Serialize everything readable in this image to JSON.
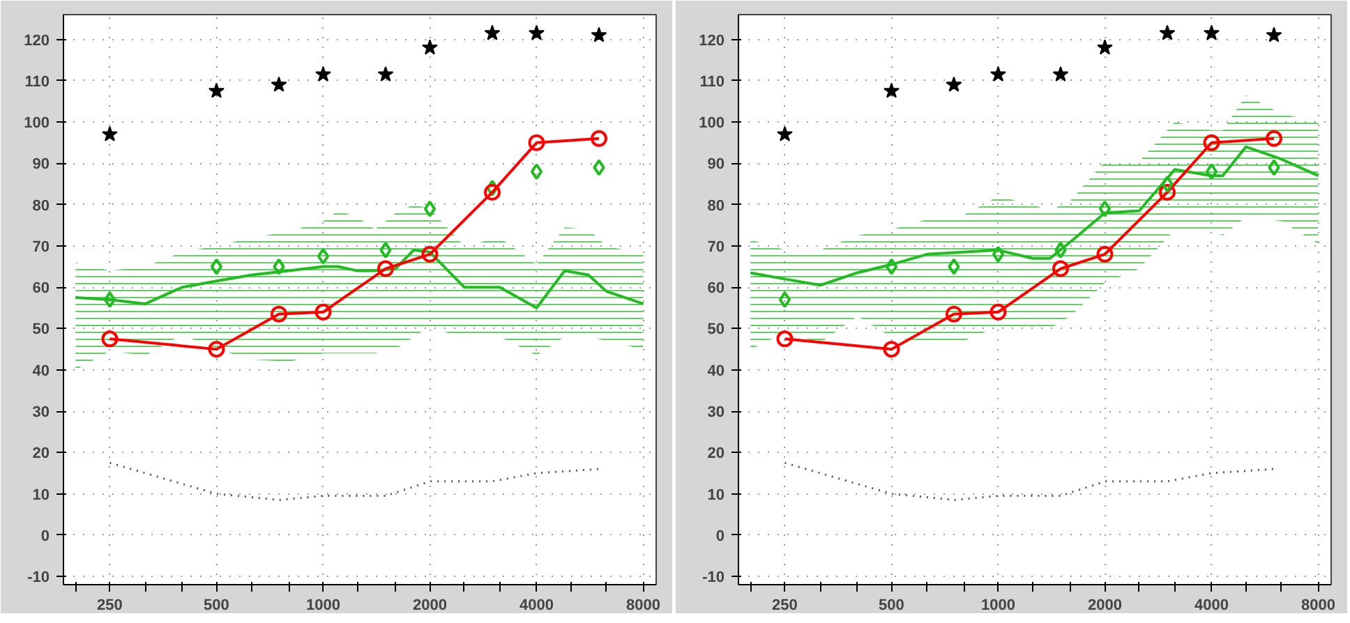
{
  "chart_data": [
    {
      "type": "line",
      "log": "x",
      "grid": true,
      "xlim": [
        185,
        8700
      ],
      "ylim": [
        -12,
        126
      ],
      "xticks": [
        {
          "value": 200,
          "label": null
        },
        250,
        {
          "value": 315,
          "label": null
        },
        {
          "value": 400,
          "label": null
        },
        500,
        {
          "value": 630,
          "label": null
        },
        {
          "value": 800,
          "label": null
        },
        1000,
        {
          "value": 1250,
          "label": null
        },
        {
          "value": 1600,
          "label": null
        },
        2000,
        {
          "value": 2500,
          "label": null
        },
        {
          "value": 3150,
          "label": null
        },
        4000,
        {
          "value": 5000,
          "label": null
        },
        {
          "value": 6300,
          "label": null
        },
        8000
      ],
      "yticks": [
        -10,
        0,
        10,
        20,
        30,
        40,
        50,
        60,
        70,
        80,
        90,
        100,
        110,
        120
      ],
      "series": [
        {
          "color": "#22bb22",
          "marker": "none",
          "x": [
            200,
            250,
            315,
            400,
            500,
            630,
            800,
            1000,
            1100,
            1250,
            1400,
            1600,
            1800,
            2000,
            2500,
            3150,
            4000,
            4800,
            5600,
            6300,
            8000
          ],
          "values": [
            57.5,
            57,
            56,
            60,
            61.5,
            63,
            64,
            65,
            65,
            64,
            64,
            64.5,
            69,
            68.5,
            60,
            60,
            55,
            64,
            63,
            59,
            56
          ],
          "lower": [
            40,
            44.5,
            43.5,
            48.5,
            45,
            42.5,
            42,
            44,
            44,
            44,
            44,
            45,
            48,
            50.5,
            47.5,
            48,
            43.5,
            48,
            48,
            47,
            45
          ],
          "upper": [
            66,
            64,
            65,
            68.5,
            70,
            72,
            73.5,
            76,
            78.5,
            77,
            74,
            78,
            80,
            79,
            70,
            72,
            65.5,
            74.5,
            74,
            70,
            68
          ]
        },
        {
          "type": "line",
          "color": "#555555",
          "marker": "none",
          "line_style": "dotted",
          "x": [
            250,
            500,
            750,
            1000,
            1500,
            2000,
            3000,
            4000,
            6000
          ],
          "values": [
            17.5,
            10,
            8.5,
            9.5,
            9.5,
            13,
            13,
            15,
            16
          ]
        },
        {
          "type": "scatter",
          "color": "#000000",
          "marker": "star",
          "x": [
            250,
            500,
            750,
            1000,
            1500,
            2000,
            3000,
            4000,
            6000
          ],
          "values": [
            97,
            107.5,
            109,
            111.5,
            111.5,
            118,
            121.5,
            121.5,
            121
          ]
        },
        {
          "type": "scatter",
          "color": "#22bb22",
          "marker": "diamond",
          "x": [
            250,
            500,
            750,
            1000,
            1500,
            2000,
            3000,
            4000,
            6000
          ],
          "values": [
            57,
            65,
            65,
            67.5,
            69,
            79,
            84,
            88,
            89
          ]
        },
        {
          "type": "line",
          "color": "#ff0000",
          "marker": "circle",
          "x": [
            250,
            500,
            750,
            1000,
            1500,
            2000,
            3000,
            4000,
            6000
          ],
          "values": [
            47.5,
            45,
            53.5,
            54,
            64.5,
            68,
            83,
            95,
            96
          ]
        }
      ]
    },
    {
      "type": "line",
      "log": "x",
      "grid": true,
      "xlim": [
        185,
        8700
      ],
      "ylim": [
        -12,
        126
      ],
      "xticks": [
        {
          "value": 200,
          "label": null
        },
        250,
        {
          "value": 315,
          "label": null
        },
        {
          "value": 400,
          "label": null
        },
        500,
        {
          "value": 630,
          "label": null
        },
        {
          "value": 800,
          "label": null
        },
        1000,
        {
          "value": 1250,
          "label": null
        },
        {
          "value": 1600,
          "label": null
        },
        2000,
        {
          "value": 2500,
          "label": null
        },
        {
          "value": 3150,
          "label": null
        },
        4000,
        {
          "value": 5000,
          "label": null
        },
        {
          "value": 6300,
          "label": null
        },
        8000
      ],
      "yticks": [
        -10,
        0,
        10,
        20,
        30,
        40,
        50,
        60,
        70,
        80,
        90,
        100,
        110,
        120
      ],
      "series": [
        {
          "color": "#22bb22",
          "marker": "none",
          "x": [
            200,
            250,
            315,
            400,
            500,
            630,
            800,
            1000,
            1250,
            1400,
            1600,
            2000,
            2500,
            3150,
            4000,
            4300,
            5000,
            6300,
            8000
          ],
          "values": [
            63.5,
            62,
            60.5,
            63.5,
            65.5,
            68,
            68.5,
            69,
            67,
            67,
            71,
            78,
            78.5,
            88.5,
            87,
            87,
            94,
            91,
            87
          ],
          "lower": [
            45,
            49,
            46.5,
            53,
            48,
            46.5,
            47,
            50.5,
            50,
            50,
            53,
            61,
            64.5,
            74,
            74,
            72.5,
            77,
            76,
            70.5
          ],
          "upper": [
            71.5,
            69,
            69,
            72.5,
            74,
            76.5,
            77.5,
            82,
            80,
            78.5,
            81,
            90.5,
            90.5,
            100,
            98,
            98,
            106.5,
            102,
            100
          ]
        },
        {
          "type": "line",
          "color": "#555555",
          "marker": "none",
          "line_style": "dotted",
          "x": [
            250,
            500,
            750,
            1000,
            1500,
            2000,
            3000,
            4000,
            6000
          ],
          "values": [
            17.5,
            10,
            8.5,
            9.5,
            9.5,
            13,
            13,
            15,
            16
          ]
        },
        {
          "type": "scatter",
          "color": "#000000",
          "marker": "star",
          "x": [
            250,
            500,
            750,
            1000,
            1500,
            2000,
            3000,
            4000,
            6000
          ],
          "values": [
            97,
            107.5,
            109,
            111.5,
            111.5,
            118,
            121.5,
            121.5,
            121
          ]
        },
        {
          "type": "line",
          "color": "#ff0000",
          "marker": "circle",
          "x": [
            250,
            500,
            750,
            1000,
            1500,
            2000,
            3000,
            4000,
            6000
          ],
          "values": [
            47.5,
            45,
            53.5,
            54,
            64.5,
            68,
            83,
            95,
            96
          ]
        },
        {
          "type": "scatter",
          "color": "#22bb22",
          "marker": "diamond",
          "x": [
            250,
            500,
            750,
            1000,
            1500,
            2000,
            3000,
            4000,
            6000
          ],
          "values": [
            57,
            65,
            65,
            68,
            69,
            79,
            85,
            88,
            89
          ]
        }
      ]
    }
  ]
}
